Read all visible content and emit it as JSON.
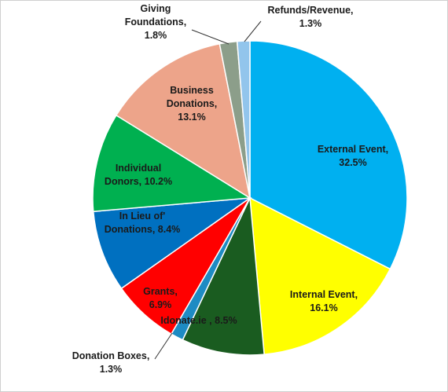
{
  "chart_data": {
    "type": "pie",
    "start_angle_deg": 0,
    "direction": "clockwise",
    "slices": [
      {
        "category": "External Event",
        "value": 32.5,
        "label_lines": [
          "External Event,",
          "32.5%"
        ],
        "color": "#00b0f0"
      },
      {
        "category": "Internal Event",
        "value": 16.1,
        "label_lines": [
          "Internal Event,",
          "16.1%"
        ],
        "color": "#ffff00"
      },
      {
        "category": "Idonate.ie",
        "value": 8.5,
        "label_lines": [
          "Idonate.ie , 8.5%"
        ],
        "color": "#1a5c20"
      },
      {
        "category": "Donation Boxes",
        "value": 1.3,
        "label_lines": [
          "Donation Boxes,",
          "1.3%"
        ],
        "color": "#1e8bc3"
      },
      {
        "category": "Grants",
        "value": 6.9,
        "label_lines": [
          "Grants,",
          "6.9%"
        ],
        "color": "#ff0000"
      },
      {
        "category": "In Lieu of' Donations",
        "value": 8.4,
        "label_lines": [
          "In Lieu of'",
          "Donations, 8.4%"
        ],
        "color": "#0070c0"
      },
      {
        "category": "Individual Donors",
        "value": 10.2,
        "label_lines": [
          "Individual",
          "Donors, 10.2%"
        ],
        "color": "#00b050"
      },
      {
        "category": "Business Donations",
        "value": 13.1,
        "label_lines": [
          "Business",
          "Donations,",
          "13.1%"
        ],
        "color": "#eda48a"
      },
      {
        "category": "Giving Foundations",
        "value": 1.8,
        "label_lines": [
          "Giving",
          "Foundations,",
          "1.8%"
        ],
        "color": "#8c9e8a"
      },
      {
        "category": "Refunds/Revenue",
        "value": 1.3,
        "label_lines": [
          "Refunds/Revenue,",
          "1.3%"
        ],
        "color": "#92c5ec"
      }
    ]
  }
}
